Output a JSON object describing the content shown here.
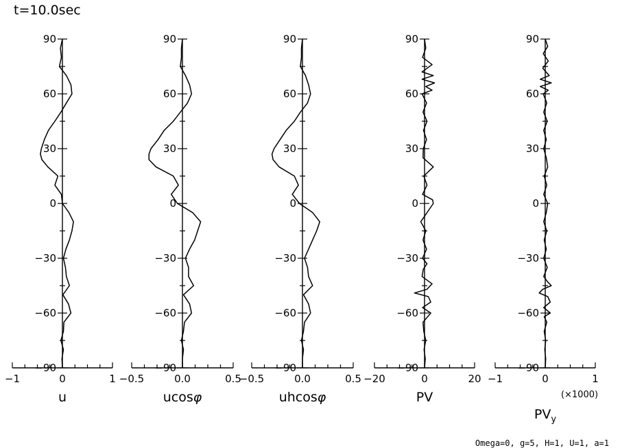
{
  "title": "t=10.0sec",
  "footnote": "Omega=0, g=5, H=1, U=1, a=1",
  "chart_data": [
    {
      "type": "line",
      "xlabel": "u",
      "xlim": [
        -1,
        1
      ],
      "xticks": [
        "−1",
        "0",
        "1"
      ],
      "ylim": [
        -90,
        90
      ],
      "yticks": [
        "90",
        "60",
        "30",
        "0",
        "−30",
        "−60",
        "−90"
      ],
      "series": [
        {
          "lat": [
            90,
            85,
            80,
            75,
            70,
            65,
            60,
            55,
            50,
            45,
            40,
            35,
            30,
            27,
            24,
            20,
            15,
            10,
            5,
            0,
            -5,
            -10,
            -15,
            -20,
            -25,
            -30,
            -35,
            -40,
            -45,
            -50,
            -55,
            -60,
            -65,
            -70,
            -75,
            -80,
            -85,
            -90
          ],
          "x": [
            0.0,
            -0.04,
            -0.02,
            -0.06,
            0.08,
            0.17,
            0.19,
            0.08,
            -0.03,
            -0.15,
            -0.28,
            -0.36,
            -0.42,
            -0.44,
            -0.41,
            -0.29,
            -0.09,
            -0.15,
            -0.02,
            0.0,
            0.13,
            0.22,
            0.19,
            0.14,
            0.07,
            0.02,
            0.06,
            0.08,
            0.14,
            0.01,
            0.12,
            0.17,
            0.03,
            0.02,
            -0.03,
            0.02,
            -0.01,
            0.0
          ]
        }
      ]
    },
    {
      "type": "line",
      "xlabel": "ucos",
      "xlabel_symbol": "φ",
      "xlim": [
        -0.5,
        0.5
      ],
      "xticks": [
        "−0.5",
        "0.0",
        "0.5"
      ],
      "ylim": [
        -90,
        90
      ],
      "yticks": [
        "90",
        "60",
        "30",
        "0",
        "−30",
        "−60",
        "−90"
      ],
      "series": [
        {
          "lat": [
            90,
            85,
            80,
            75,
            70,
            65,
            60,
            55,
            50,
            45,
            40,
            35,
            30,
            27,
            24,
            20,
            15,
            10,
            5,
            0,
            -5,
            -10,
            -15,
            -20,
            -25,
            -30,
            -35,
            -40,
            -45,
            -50,
            -55,
            -60,
            -65,
            -70,
            -75,
            -80,
            -85,
            -90
          ],
          "x": [
            0.0,
            -0.01,
            -0.01,
            -0.02,
            0.03,
            0.07,
            0.09,
            0.05,
            -0.02,
            -0.09,
            -0.18,
            -0.24,
            -0.31,
            -0.33,
            -0.33,
            -0.26,
            -0.09,
            -0.04,
            -0.11,
            -0.05,
            0.1,
            0.18,
            0.15,
            0.12,
            0.07,
            0.03,
            0.06,
            0.06,
            0.11,
            0.01,
            0.07,
            0.09,
            0.02,
            0.01,
            -0.01,
            0.01,
            0.0,
            0.0
          ]
        }
      ]
    },
    {
      "type": "line",
      "xlabel": "uhcos",
      "xlabel_symbol": "φ",
      "xlim": [
        -0.5,
        0.5
      ],
      "xticks": [
        "−0.5",
        "0.0",
        "0.5"
      ],
      "ylim": [
        -90,
        90
      ],
      "yticks": [
        "90",
        "60",
        "30",
        "0",
        "−30",
        "−60",
        "−90"
      ],
      "series": [
        {
          "lat": [
            90,
            85,
            80,
            75,
            70,
            65,
            60,
            55,
            50,
            45,
            40,
            35,
            30,
            27,
            24,
            20,
            15,
            10,
            5,
            0,
            -5,
            -10,
            -15,
            -20,
            -25,
            -30,
            -35,
            -40,
            -45,
            -50,
            -55,
            -60,
            -65,
            -70,
            -75,
            -80,
            -85,
            -90
          ],
          "x": [
            0.0,
            -0.01,
            -0.01,
            -0.02,
            0.03,
            0.06,
            0.08,
            0.05,
            -0.02,
            -0.08,
            -0.16,
            -0.22,
            -0.28,
            -0.3,
            -0.29,
            -0.23,
            -0.08,
            -0.04,
            -0.1,
            -0.03,
            0.1,
            0.17,
            0.14,
            0.1,
            0.06,
            0.02,
            0.05,
            0.06,
            0.1,
            0.01,
            0.06,
            0.08,
            0.02,
            0.01,
            -0.01,
            0.01,
            0.0,
            0.0
          ]
        }
      ]
    },
    {
      "type": "line",
      "xlabel": "PV",
      "xlim": [
        -20,
        20
      ],
      "xticks": [
        "−20",
        "0",
        "20"
      ],
      "ylim": [
        -90,
        90
      ],
      "yticks": [
        "90",
        "60",
        "30",
        "0",
        "−30",
        "−60",
        "−90"
      ],
      "series": [
        {
          "lat": [
            90,
            85,
            80,
            76,
            72,
            70,
            68,
            66,
            64,
            62,
            60,
            55,
            50,
            45,
            40,
            35,
            30,
            25,
            20,
            15,
            10,
            5,
            2,
            0,
            -3,
            -8,
            -10,
            -15,
            -20,
            -25,
            -30,
            -33,
            -36,
            -40,
            -44,
            -47,
            -49,
            -51,
            -54,
            -57,
            -60,
            -65,
            -70,
            -75,
            -80,
            -85,
            -90
          ],
          "x": [
            0.0,
            0.5,
            -0.8,
            3.0,
            -1.0,
            3.5,
            -1.0,
            4.0,
            0.5,
            3.0,
            -1.0,
            0.8,
            -0.6,
            1.0,
            -0.4,
            0.8,
            -0.5,
            -0.6,
            3.5,
            -0.3,
            1.0,
            -0.8,
            3.2,
            3.5,
            2.0,
            -0.5,
            -1.5,
            0.5,
            -0.6,
            0.8,
            -0.8,
            1.0,
            -0.5,
            -1.0,
            3.0,
            1.0,
            -4.0,
            1.5,
            2.5,
            -0.8,
            2.5,
            -0.6,
            -0.3,
            0.5,
            -0.2,
            0.3,
            0.0
          ]
        }
      ]
    },
    {
      "type": "line",
      "xlabel": "PV",
      "xlabel_subscript": "y",
      "scale_note": "(×1000)",
      "xlim": [
        -1,
        1
      ],
      "xticks": [
        "−1",
        "0",
        "1"
      ],
      "ylim": [
        -90,
        90
      ],
      "yticks": [
        "90",
        "60",
        "30",
        "0",
        "−30",
        "−60",
        "−90"
      ],
      "series": [
        {
          "lat": [
            90,
            86,
            82,
            78,
            74,
            70,
            68,
            66,
            64,
            62,
            60,
            55,
            50,
            45,
            40,
            35,
            30,
            25,
            20,
            15,
            10,
            5,
            0,
            -5,
            -10,
            -15,
            -20,
            -25,
            -30,
            -35,
            -40,
            -43,
            -45,
            -47,
            -49,
            -51,
            -54,
            -57,
            -60,
            -62,
            -65,
            -70,
            -75,
            -80,
            -85,
            -90
          ],
          "x": [
            0.0,
            0.05,
            -0.04,
            0.06,
            -0.05,
            0.08,
            -0.1,
            0.12,
            -0.1,
            0.06,
            -0.04,
            0.03,
            -0.03,
            0.04,
            -0.03,
            0.02,
            -0.03,
            0.02,
            0.05,
            -0.02,
            0.03,
            -0.03,
            0.05,
            0.02,
            -0.03,
            0.03,
            -0.02,
            0.02,
            -0.03,
            0.04,
            -0.03,
            0.05,
            0.12,
            -0.05,
            -0.12,
            0.05,
            0.1,
            -0.03,
            0.1,
            -0.02,
            0.03,
            -0.02,
            0.01,
            -0.01,
            0.01,
            0.0
          ]
        }
      ]
    }
  ]
}
